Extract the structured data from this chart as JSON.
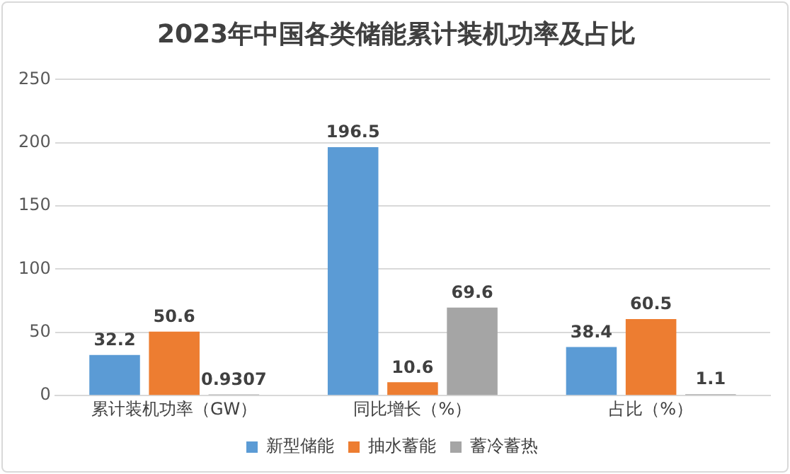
{
  "chart_data": {
    "type": "bar",
    "title": "2023年中国各类储能累计装机功率及占比",
    "categories": [
      "累计装机功率（GW）",
      "同比增长（%）",
      "占比（%）"
    ],
    "series": [
      {
        "name": "新型储能",
        "color": "#5b9bd5",
        "values": [
          32.2,
          196.5,
          38.4
        ]
      },
      {
        "name": "抽水蓄能",
        "color": "#ed7d31",
        "values": [
          50.6,
          10.6,
          60.5
        ]
      },
      {
        "name": "蓄冷蓄热",
        "color": "#a5a5a5",
        "values": [
          0.9307,
          69.6,
          1.1
        ]
      }
    ],
    "ylim": [
      0,
      250
    ],
    "yticks": [
      0,
      50,
      100,
      150,
      200,
      250
    ],
    "grid": "y",
    "legend": "bottom",
    "data_labels": true
  }
}
